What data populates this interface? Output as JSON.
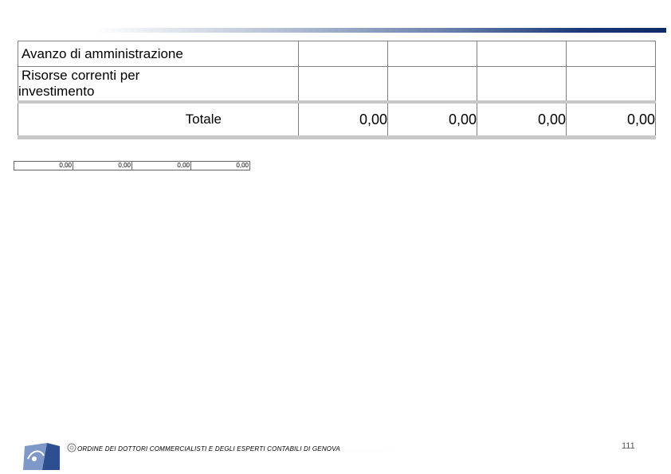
{
  "table": {
    "rows": [
      {
        "label": "Avanzo di amministrazione"
      },
      {
        "label_line1": "Risorse correnti per",
        "label_line2": "investimento"
      }
    ],
    "total": {
      "label": "Totale",
      "values": [
        "0,00",
        "0,00",
        "0,00",
        "0,00"
      ]
    }
  },
  "mini_table": {
    "values": [
      "0,00",
      "0,00",
      "0,00",
      "0,00"
    ]
  },
  "footer": {
    "org_name": "ORDINE DEI DOTTORI COMMERCIALISTI E DEGLI ESPERTI CONTABILI DI GENOVA",
    "page_number": "111",
    "logo_icon": "odcec-logo-icon",
    "seal_icon": "seal-icon"
  },
  "colors": {
    "rule_dark": "#0d2a66",
    "rule_light": "#c8d0e0",
    "logo_blue": "#6f8fc8"
  }
}
